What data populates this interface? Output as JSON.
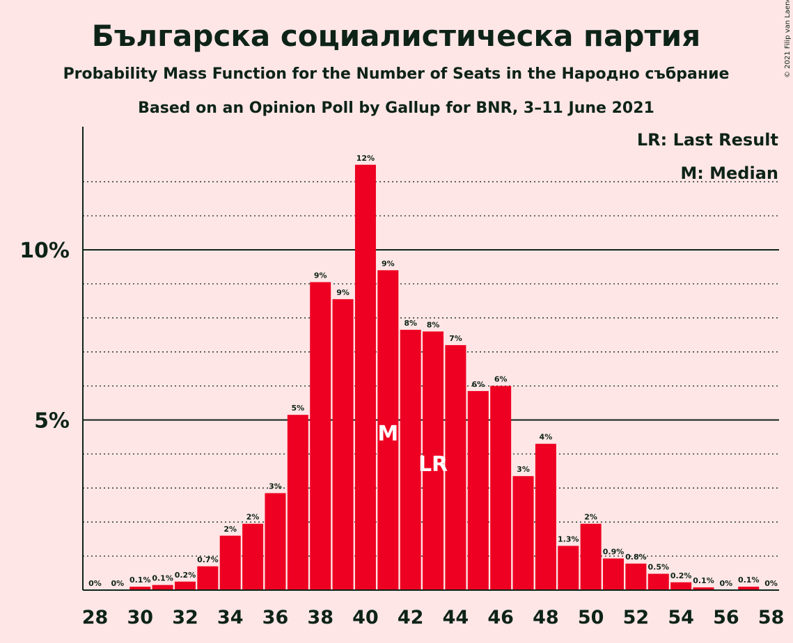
{
  "title": "Българска социалистическа партия",
  "subtitle": "Probability Mass Function for the Number of Seats in the Народно събрание",
  "subtitle2": "Based on an Opinion Poll by Gallup for BNR, 3–11 June 2021",
  "copyright": "© 2021 Filip van Laenen",
  "legend": {
    "lr": "LR: Last Result",
    "m": "M: Median"
  },
  "markers": {
    "median_label": "M",
    "median_seat": 41,
    "lr_label": "LR",
    "lr_seat": 43
  },
  "colors": {
    "bar": "#ee0022",
    "background": "#ffe6e6",
    "text": "#0d2318"
  },
  "chart_data": {
    "type": "bar",
    "x": [
      28,
      29,
      30,
      31,
      32,
      33,
      34,
      35,
      36,
      37,
      38,
      39,
      40,
      41,
      42,
      43,
      44,
      45,
      46,
      47,
      48,
      49,
      50,
      51,
      52,
      53,
      54,
      55,
      56,
      57,
      58
    ],
    "values": [
      0,
      0,
      0.1,
      0.15,
      0.25,
      0.7,
      1.6,
      1.95,
      2.85,
      5.15,
      9.05,
      8.55,
      12.5,
      9.4,
      7.65,
      7.6,
      7.2,
      5.85,
      6.0,
      3.35,
      4.3,
      1.3,
      1.95,
      0.93,
      0.78,
      0.48,
      0.23,
      0.08,
      0,
      0.1,
      0
    ],
    "labels": [
      "0%",
      "0%",
      "0.1%",
      "0.1%",
      "0.2%",
      "0.7%",
      "2%",
      "2%",
      "3%",
      "5%",
      "9%",
      "9%",
      "12%",
      "9%",
      "8%",
      "8%",
      "7%",
      "6%",
      "6%",
      "3%",
      "4%",
      "1.3%",
      "2%",
      "0.9%",
      "0.8%",
      "0.5%",
      "0.2%",
      "0.1%",
      "0%",
      "0.1%",
      "0%"
    ],
    "x_tick_labels": [
      "28",
      "30",
      "32",
      "34",
      "36",
      "38",
      "40",
      "42",
      "44",
      "46",
      "48",
      "50",
      "52",
      "54",
      "56",
      "58"
    ],
    "y_tick_labels": [
      {
        "value": 5,
        "label": "5%"
      },
      {
        "value": 10,
        "label": "10%"
      }
    ],
    "ylim": [
      0,
      13.6
    ],
    "grid": "dotted every 1%, solid at 5% and 10%"
  }
}
